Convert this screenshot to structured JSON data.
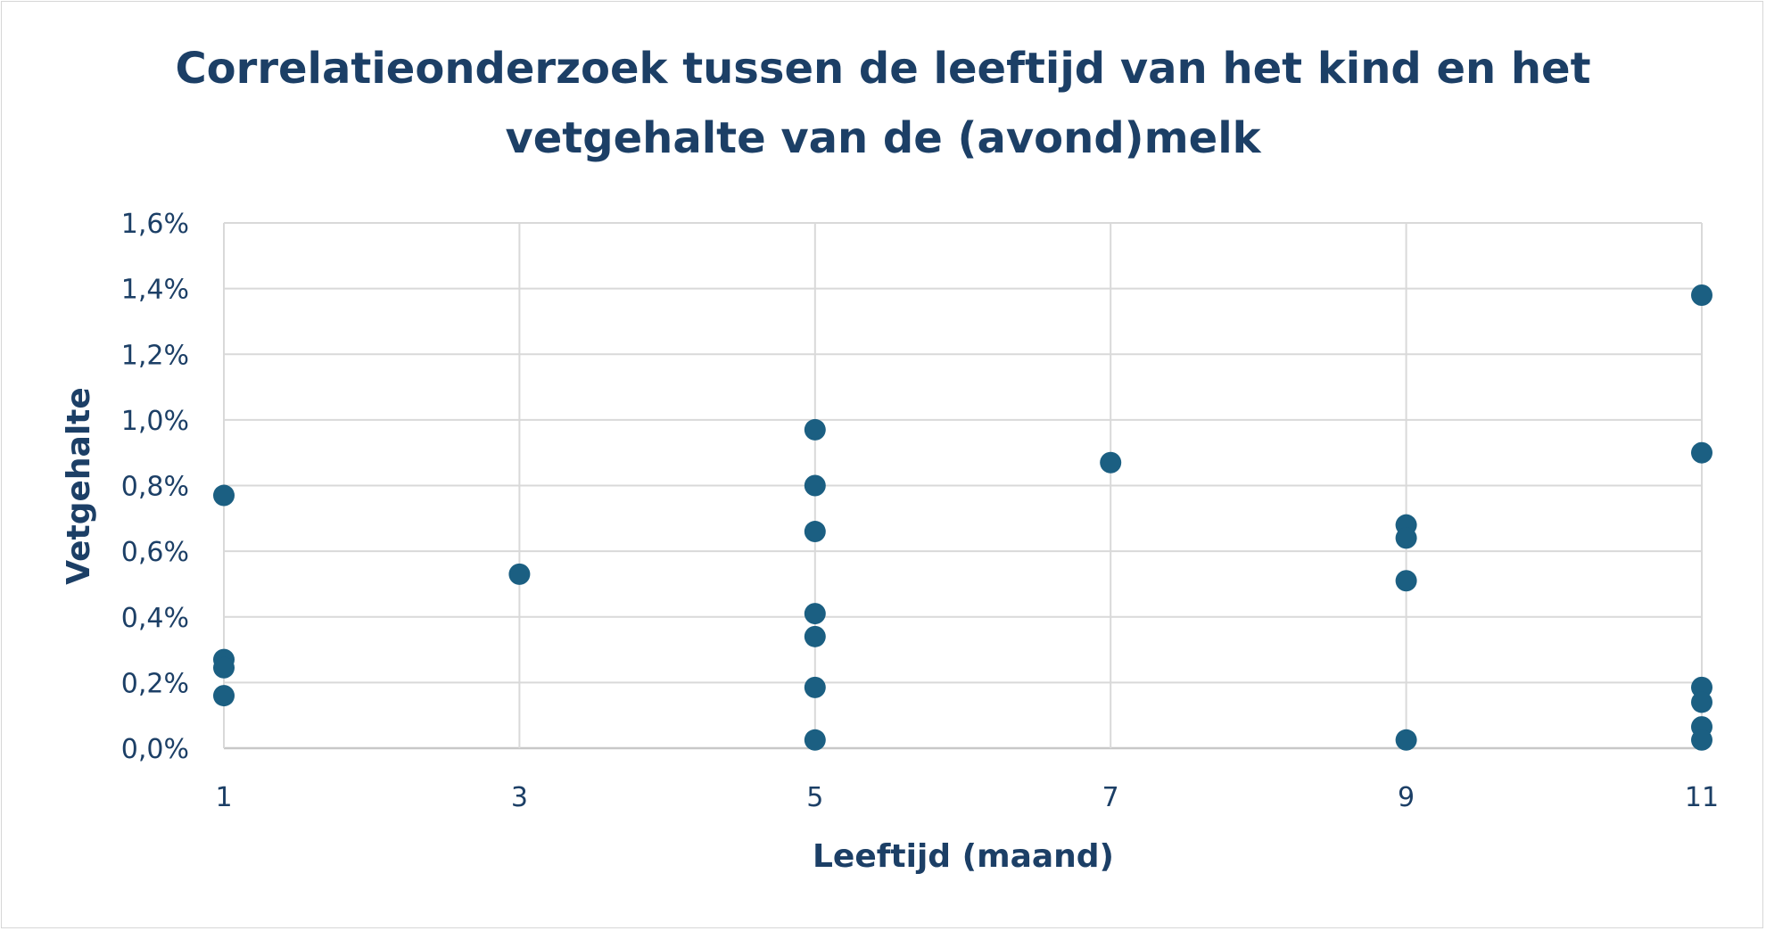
{
  "chart_data": {
    "type": "scatter",
    "title_lines": [
      "Correlatieonderzoek tussen de leeftijd van het kind en het",
      "vetgehalte van de (avond)melk"
    ],
    "xlabel": "Leeftijd (maand)",
    "ylabel": "Vetgehalte",
    "x_ticks": [
      "1",
      "3",
      "5",
      "7",
      "9",
      "11"
    ],
    "y_ticks": [
      "0,0%",
      "0,2%",
      "0,4%",
      "0,6%",
      "0,8%",
      "1,0%",
      "1,2%",
      "1,4%",
      "1,6%"
    ],
    "xlim": [
      1,
      11
    ],
    "ylim": [
      0,
      1.6
    ],
    "grid": true,
    "marker_color": "#1b5f82",
    "points": [
      {
        "x": 1,
        "y": 0.77
      },
      {
        "x": 1,
        "y": 0.27
      },
      {
        "x": 1,
        "y": 0.245
      },
      {
        "x": 1,
        "y": 0.16
      },
      {
        "x": 3,
        "y": 0.53
      },
      {
        "x": 5,
        "y": 0.97
      },
      {
        "x": 5,
        "y": 0.8
      },
      {
        "x": 5,
        "y": 0.66
      },
      {
        "x": 5,
        "y": 0.41
      },
      {
        "x": 5,
        "y": 0.34
      },
      {
        "x": 5,
        "y": 0.185
      },
      {
        "x": 5,
        "y": 0.025
      },
      {
        "x": 7,
        "y": 0.87
      },
      {
        "x": 9,
        "y": 0.68
      },
      {
        "x": 9,
        "y": 0.64
      },
      {
        "x": 9,
        "y": 0.51
      },
      {
        "x": 9,
        "y": 0.025
      },
      {
        "x": 11,
        "y": 1.38
      },
      {
        "x": 11,
        "y": 0.9
      },
      {
        "x": 11,
        "y": 0.185
      },
      {
        "x": 11,
        "y": 0.14
      },
      {
        "x": 11,
        "y": 0.065
      },
      {
        "x": 11,
        "y": 0.025
      }
    ]
  }
}
